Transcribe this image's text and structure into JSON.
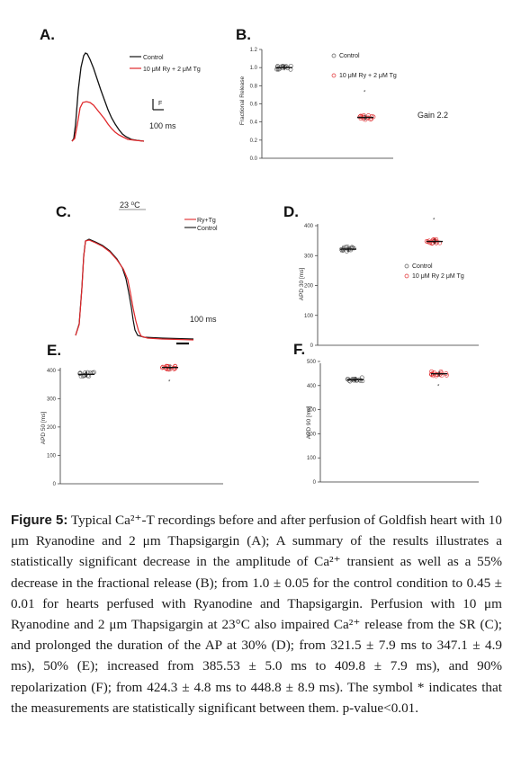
{
  "panels": {
    "A": {
      "label": "A.",
      "legend": [
        "Control",
        "10 μM Ry + 2 μM Tg"
      ],
      "scale_f": "F",
      "scale_time": "100 ms",
      "colors": {
        "control": "#111111",
        "treated": "#e0282b"
      }
    },
    "B": {
      "label": "B.",
      "ylabel": "Fractional Release",
      "yticks": [
        "0.0",
        "0.2",
        "0.4",
        "0.6",
        "0.8",
        "1.0",
        "1.2"
      ],
      "legend": [
        "Control",
        "10 μM Ry + 2 μM Tg"
      ],
      "star": "*",
      "note": "Gain 2.2"
    },
    "C": {
      "label": "C.",
      "temp_label": "23 ⁰C",
      "legend": [
        "Ry+Tg",
        "Control"
      ],
      "scale_time": "100 ms"
    },
    "D": {
      "label": "D.",
      "ylabel": "APD 30 [ms]",
      "yticks": [
        "0",
        "100",
        "200",
        "300",
        "400"
      ],
      "legend": [
        "Control",
        "10 μM Ry 2 μM Tg"
      ],
      "star": "*"
    },
    "E": {
      "label": "E.",
      "ylabel": "APD 50 [ms]",
      "yticks": [
        "0",
        "100",
        "200",
        "300",
        "400"
      ],
      "star": "*"
    },
    "F": {
      "label": "F.",
      "ylabel": "APD 90 [ms]",
      "yticks": [
        "0",
        "100",
        "200",
        "300",
        "400",
        "500"
      ],
      "star": "*"
    }
  },
  "chart_data": [
    {
      "type": "scatter",
      "panel": "B",
      "categories": [
        "Control",
        "10 μM Ry + 2 μM Tg"
      ],
      "series": [
        {
          "name": "Control",
          "values": [
            1.0
          ]
        },
        {
          "name": "10 μM Ry + 2 μM Tg",
          "values": [
            0.45
          ]
        }
      ],
      "ylabel": "Fractional Release",
      "ylim": [
        0,
        1.2
      ]
    },
    {
      "type": "scatter",
      "panel": "D",
      "categories": [
        "Control",
        "10 μM Ry 2 μM Tg"
      ],
      "series": [
        {
          "name": "Control",
          "values": [
            321.5
          ]
        },
        {
          "name": "10 μM Ry 2 μM Tg",
          "values": [
            347.1
          ]
        }
      ],
      "ylabel": "APD 30 [ms]",
      "ylim": [
        0,
        400
      ]
    },
    {
      "type": "scatter",
      "panel": "E",
      "categories": [
        "Control",
        "10 μM Ry 2 μM Tg"
      ],
      "values": [
        385.53,
        409.8
      ],
      "ylabel": "APD 50 [ms]",
      "ylim": [
        0,
        450
      ]
    },
    {
      "type": "scatter",
      "panel": "F",
      "categories": [
        "Control",
        "10 μM Ry 2 μM Tg"
      ],
      "values": [
        424.3,
        448.8
      ],
      "ylabel": "APD 90 [ms]",
      "ylim": [
        0,
        500
      ]
    }
  ],
  "caption": {
    "lead": "Figure 5:",
    "text": " Typical Ca²⁺-T recordings before and after perfusion of Goldfish heart with 10 μm Ryanodine and 2 μm Thapsigargin (A); A summary of the results illustrates a statistically significant decrease in the amplitude of Ca²⁺ transient as well as a 55% decrease in the fractional release (B); from 1.0 ± 0.05 for the control condition to 0.45 ± 0.01 for hearts perfused with Ryanodine and Thapsigargin. Perfusion with 10 μm Ryanodine and 2 μm Thapsigargin at 23°C also impaired Ca²⁺ release from the SR (C); and prolonged the duration of the AP at 30% (D); from 321.5 ± 7.9 ms to 347.1 ± 4.9 ms), 50% (E); increased from 385.53 ± 5.0 ms to 409.8 ± 7.9 ms), and 90% repolarization (F); from 424.3 ± 4.8 ms to 448.8 ± 8.9 ms). The symbol * indicates that the measurements are statistically significant between them. p-value<0.01."
  }
}
